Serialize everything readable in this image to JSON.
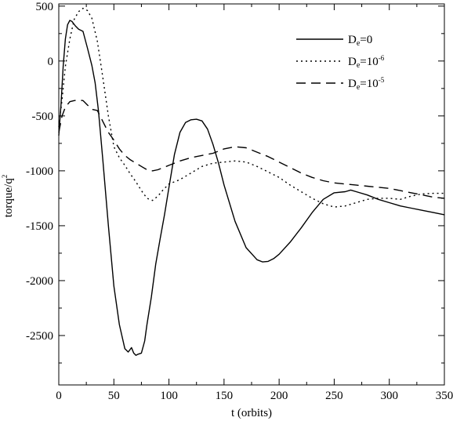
{
  "chart_data": {
    "type": "line",
    "xlabel": "t (orbits)",
    "ylabel": {
      "base": "torque/q",
      "sup": "2"
    },
    "xlim": [
      0,
      350
    ],
    "ylim": [
      -2950,
      520
    ],
    "xticks": [
      0,
      50,
      100,
      150,
      200,
      250,
      300,
      350
    ],
    "yticks": [
      500,
      0,
      -500,
      -1000,
      -1500,
      -2000,
      -2500
    ],
    "xticks_text": [
      "0",
      "50",
      "100",
      "150",
      "200",
      "250",
      "300",
      "350"
    ],
    "yticks_text": [
      "500",
      "0",
      "-500",
      "-1000",
      "-1500",
      "-2000",
      "-2500"
    ],
    "grid": false,
    "legend_position": "top-right",
    "series": [
      {
        "name": "D_e=0",
        "label_parts": {
          "base": "D",
          "sub": "e",
          "rest": "=0",
          "sup": ""
        },
        "style": "solid",
        "x": [
          0,
          2,
          4,
          6,
          8,
          10,
          12,
          15,
          18,
          22,
          26,
          30,
          33,
          36,
          40,
          45,
          50,
          55,
          60,
          63,
          66,
          68,
          70,
          72,
          75,
          78,
          80,
          84,
          88,
          92,
          96,
          100,
          105,
          110,
          115,
          120,
          125,
          130,
          135,
          140,
          145,
          150,
          160,
          170,
          180,
          185,
          190,
          195,
          200,
          210,
          220,
          230,
          240,
          250,
          260,
          265,
          270,
          280,
          290,
          300,
          310,
          320,
          330,
          340,
          350
        ],
        "y": [
          -680,
          -400,
          -50,
          200,
          330,
          370,
          360,
          320,
          290,
          270,
          120,
          -40,
          -200,
          -450,
          -900,
          -1500,
          -2050,
          -2400,
          -2620,
          -2650,
          -2610,
          -2660,
          -2680,
          -2670,
          -2660,
          -2550,
          -2400,
          -2150,
          -1850,
          -1620,
          -1400,
          -1150,
          -850,
          -650,
          -560,
          -535,
          -530,
          -545,
          -620,
          -760,
          -930,
          -1130,
          -1460,
          -1700,
          -1810,
          -1830,
          -1825,
          -1800,
          -1760,
          -1650,
          -1520,
          -1380,
          -1260,
          -1200,
          -1190,
          -1175,
          -1190,
          -1220,
          -1260,
          -1290,
          -1320,
          -1340,
          -1360,
          -1380,
          -1400
        ]
      },
      {
        "name": "D_e=10^-6",
        "label_parts": {
          "base": "D",
          "sub": "e",
          "rest": "=10",
          "sup": "-6"
        },
        "style": "dotted",
        "x": [
          0,
          3,
          6,
          10,
          14,
          18,
          22,
          26,
          30,
          35,
          40,
          45,
          50,
          55,
          60,
          65,
          70,
          75,
          80,
          85,
          90,
          95,
          100,
          110,
          120,
          130,
          140,
          150,
          160,
          170,
          180,
          190,
          200,
          210,
          220,
          230,
          240,
          250,
          260,
          270,
          280,
          290,
          300,
          310,
          320,
          330,
          340,
          350
        ],
        "y": [
          -600,
          -350,
          -50,
          200,
          380,
          450,
          480,
          460,
          390,
          180,
          -150,
          -500,
          -780,
          -880,
          -950,
          -1030,
          -1100,
          -1180,
          -1250,
          -1270,
          -1230,
          -1170,
          -1120,
          -1080,
          -1020,
          -960,
          -930,
          -920,
          -910,
          -920,
          -960,
          -1010,
          -1060,
          -1130,
          -1190,
          -1250,
          -1300,
          -1330,
          -1320,
          -1290,
          -1260,
          -1250,
          -1250,
          -1260,
          -1230,
          -1210,
          -1205,
          -1205
        ]
      },
      {
        "name": "D_e=10^-5",
        "label_parts": {
          "base": "D",
          "sub": "e",
          "rest": "=10",
          "sup": "-5"
        },
        "style": "dashed",
        "x": [
          0,
          3,
          6,
          10,
          14,
          18,
          22,
          26,
          30,
          35,
          40,
          45,
          50,
          55,
          60,
          65,
          70,
          75,
          80,
          85,
          90,
          100,
          110,
          120,
          130,
          140,
          150,
          160,
          170,
          180,
          190,
          200,
          210,
          220,
          230,
          240,
          250,
          260,
          270,
          280,
          290,
          300,
          310,
          320,
          330,
          340,
          350
        ],
        "y": [
          -650,
          -500,
          -420,
          -370,
          -360,
          -355,
          -360,
          -400,
          -440,
          -450,
          -550,
          -650,
          -720,
          -800,
          -860,
          -900,
          -930,
          -960,
          -990,
          -1000,
          -990,
          -950,
          -910,
          -880,
          -860,
          -840,
          -800,
          -780,
          -790,
          -830,
          -870,
          -920,
          -970,
          -1020,
          -1060,
          -1090,
          -1110,
          -1120,
          -1130,
          -1140,
          -1150,
          -1160,
          -1180,
          -1200,
          -1220,
          -1240,
          -1250
        ]
      }
    ]
  }
}
